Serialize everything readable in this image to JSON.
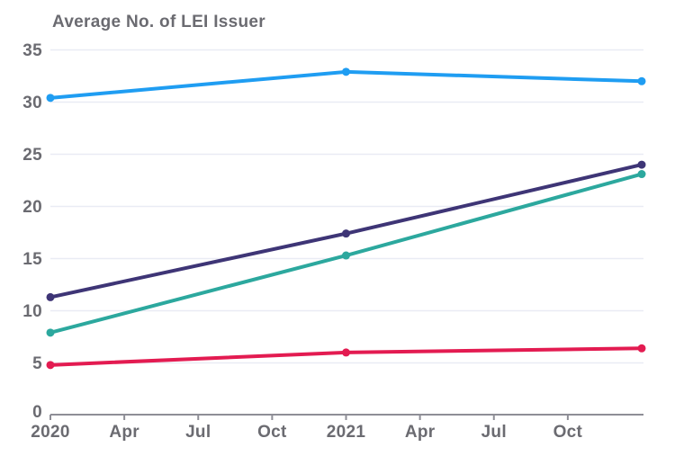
{
  "chart_data": {
    "type": "line",
    "title": "Average No. of LEI Issuer",
    "x_tick_labels": [
      "2020",
      "Apr",
      "Jul",
      "Oct",
      "2021",
      "Apr",
      "Jul",
      "Oct"
    ],
    "y_tick_labels": [
      "0",
      "5",
      "10",
      "15",
      "20",
      "25",
      "30",
      "35"
    ],
    "ylim": [
      0,
      35
    ],
    "x_interval_count": 8,
    "grid": true,
    "legend": "none",
    "series": [
      {
        "name": "light-blue-line",
        "color": "#1f9df2",
        "x": [
          0,
          4,
          8
        ],
        "values": [
          30.4,
          32.9,
          32.0
        ]
      },
      {
        "name": "dark-purple-line",
        "color": "#3e3576",
        "x": [
          0,
          4,
          8
        ],
        "values": [
          11.3,
          17.4,
          24.0
        ]
      },
      {
        "name": "teal-line",
        "color": "#2ca89e",
        "x": [
          0,
          4,
          8
        ],
        "values": [
          7.9,
          15.3,
          23.1
        ]
      },
      {
        "name": "red-line",
        "color": "#e31b51",
        "x": [
          0,
          4,
          8
        ],
        "values": [
          4.8,
          6.0,
          6.4
        ]
      }
    ],
    "colors": {
      "grid": "#e9ebf4",
      "axis": "#8e8e96",
      "text": "#6b6b71"
    }
  }
}
